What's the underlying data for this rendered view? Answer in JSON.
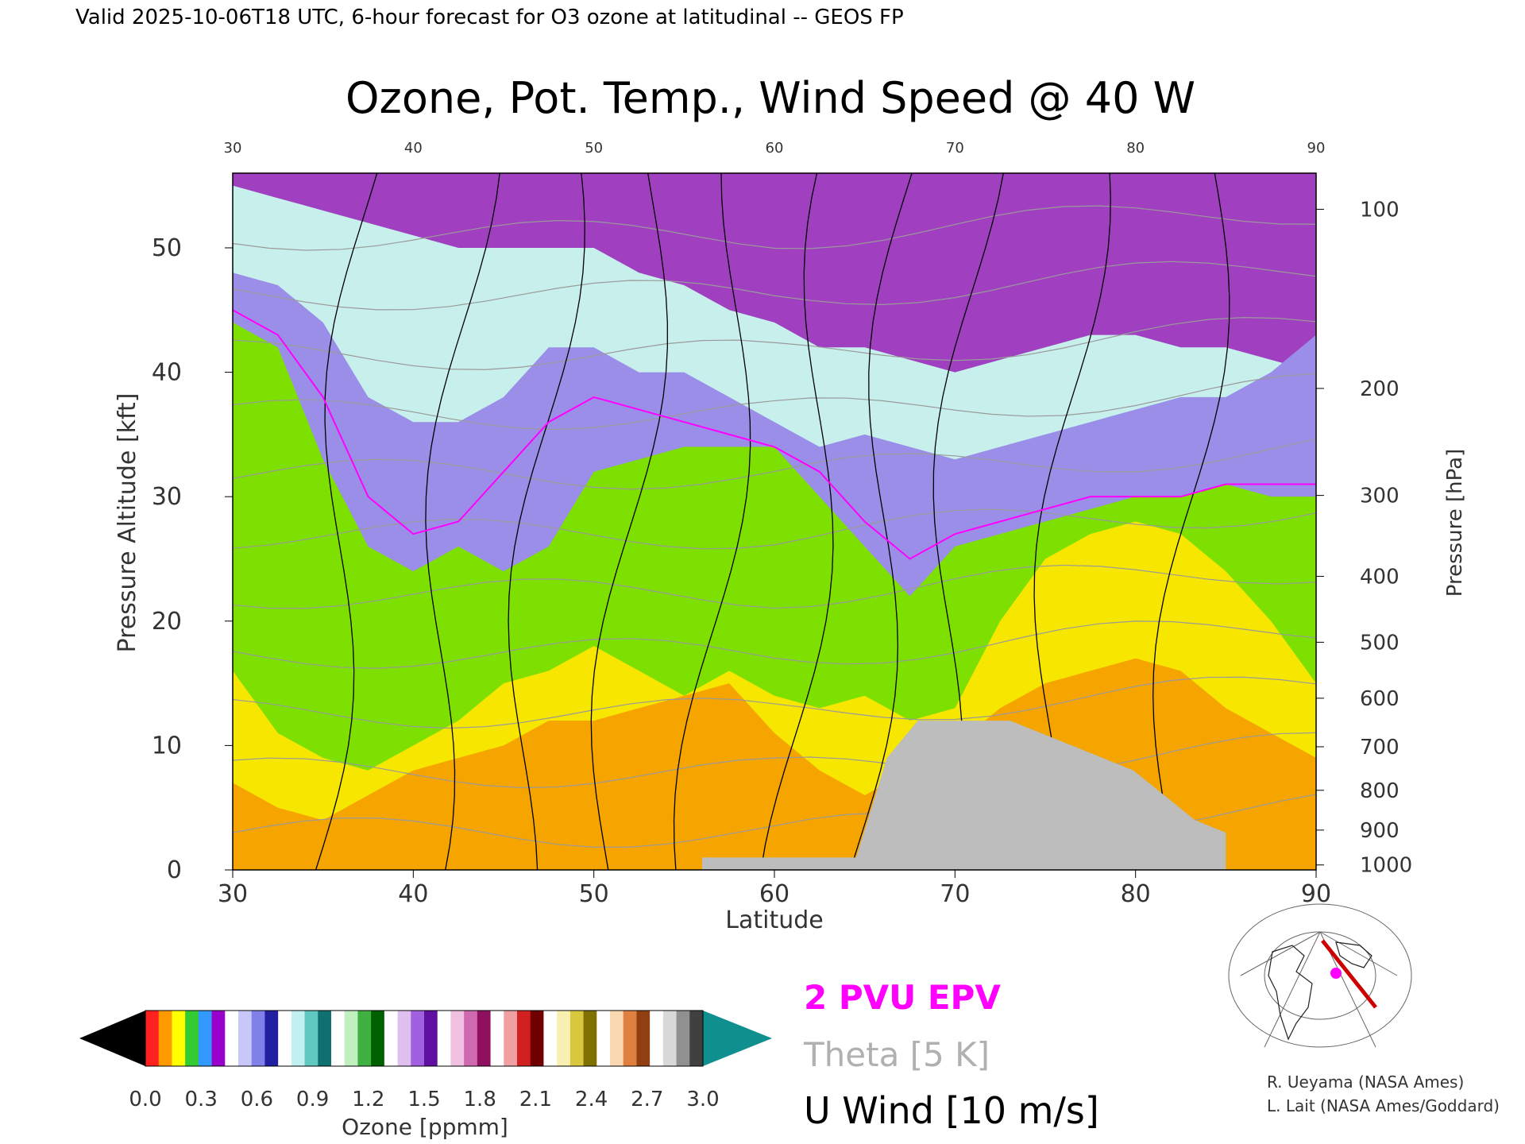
{
  "header": {
    "valid_line": "Valid 2025-10-06T18 UTC, 6-hour forecast for O3 ozone at latitudinal -- GEOS FP"
  },
  "chart_data": {
    "type": "heatmap",
    "title": "Ozone, Pot. Temp., Wind Speed @ 40 W",
    "xlabel": "Latitude",
    "ylabel": "Pressure Altitude [kft]",
    "ylabel_right": "Pressure [hPa]",
    "xlim": [
      30,
      90
    ],
    "ylim": [
      0,
      56
    ],
    "x_ticks": [
      "30",
      "40",
      "50",
      "60",
      "70",
      "80",
      "90"
    ],
    "y_ticks": [
      "0",
      "10",
      "20",
      "30",
      "40",
      "50"
    ],
    "pressure_ticks": [
      {
        "label": "100",
        "kft": 53.1
      },
      {
        "label": "200",
        "kft": 38.7
      },
      {
        "label": "300",
        "kft": 30.1
      },
      {
        "label": "400",
        "kft": 23.6
      },
      {
        "label": "500",
        "kft": 18.3
      },
      {
        "label": "600",
        "kft": 13.8
      },
      {
        "label": "700",
        "kft": 9.9
      },
      {
        "label": "800",
        "kft": 6.4
      },
      {
        "label": "900",
        "kft": 3.2
      },
      {
        "label": "1000",
        "kft": 0.4
      }
    ],
    "ozone_layers": [
      {
        "range_ppmm": "0.0-0.2",
        "color": "#f5a400",
        "top_kft": [
          7,
          5,
          4,
          6,
          8,
          9,
          10,
          12,
          12,
          13,
          14,
          15,
          11,
          8,
          6,
          8,
          10,
          13,
          15,
          16,
          17,
          16,
          13,
          11,
          9
        ]
      },
      {
        "range_ppmm": "0.2-0.3",
        "color": "#f7e600",
        "top_kft": [
          16,
          11,
          9,
          8,
          10,
          12,
          15,
          16,
          18,
          16,
          14,
          16,
          14,
          13,
          14,
          12,
          13,
          20,
          25,
          27,
          28,
          27,
          24,
          20,
          15
        ]
      },
      {
        "range_ppmm": "0.3-0.35",
        "color": "#7de000",
        "top_kft": [
          44,
          42,
          33,
          26,
          24,
          26,
          24,
          26,
          32,
          33,
          34,
          34,
          34,
          30,
          26,
          22,
          26,
          27,
          28,
          29,
          30,
          30,
          31,
          30,
          30
        ]
      },
      {
        "range_ppmm": "0.35-0.5",
        "color": "#9a8ee8",
        "top_kft": [
          48,
          47,
          44,
          38,
          36,
          36,
          38,
          42,
          42,
          40,
          40,
          38,
          36,
          34,
          35,
          34,
          33,
          34,
          35,
          36,
          37,
          38,
          38,
          40,
          43
        ]
      },
      {
        "range_ppmm": "0.5-0.6",
        "color": "#c7f0ec",
        "top_kft": [
          55,
          54,
          53,
          52,
          51,
          50,
          50,
          50,
          50,
          48,
          47,
          45,
          44,
          42,
          42,
          41,
          40,
          41,
          42,
          43,
          43,
          42,
          42,
          41,
          40
        ]
      },
      {
        "range_ppmm": ">0.6",
        "color": "#a040c0",
        "top_kft": [
          56,
          56,
          56,
          56,
          56,
          56,
          56,
          56,
          56,
          56,
          56,
          56,
          56,
          56,
          56,
          56,
          56,
          56,
          56,
          56,
          56,
          56,
          56,
          56,
          56
        ]
      }
    ],
    "epv_2pvu_kft": [
      45,
      43,
      38,
      30,
      27,
      28,
      32,
      36,
      38,
      37,
      36,
      35,
      34,
      32,
      28,
      25,
      27,
      28,
      29,
      30,
      30,
      30,
      31,
      31,
      31
    ],
    "terrain_mask": [
      {
        "lat_from": 56,
        "lat_to": 85,
        "top_kft": [
          1,
          1,
          1,
          1,
          1,
          1,
          9,
          12,
          12,
          12,
          12,
          11,
          10,
          9,
          8,
          6,
          4,
          3
        ]
      }
    ],
    "theta_contours_K": [
      "280",
      "290",
      "300",
      "310",
      "320",
      "330",
      "340",
      "350",
      "360",
      "370",
      "380"
    ],
    "u_wind_contours_ms": [
      "0",
      "10",
      "20",
      "30"
    ],
    "colorbar": {
      "label": "Ozone [ppmm]",
      "ticks": [
        "0.0",
        "0.3",
        "0.6",
        "0.9",
        "1.2",
        "1.5",
        "1.8",
        "2.1",
        "2.4",
        "2.7",
        "3.0"
      ],
      "colors": [
        "#ff2020",
        "#ff9900",
        "#ffff00",
        "#33cc33",
        "#3399ff",
        "#9900cc",
        "#ffffff",
        "#c8c8f8",
        "#8080e8",
        "#2020a0",
        "#ffffff",
        "#c0f0f0",
        "#60c8c0",
        "#107070",
        "#ffffff",
        "#c0f0c0",
        "#40b040",
        "#006000",
        "#ffffff",
        "#e0c0f0",
        "#a060e0",
        "#6010a0",
        "#ffffff",
        "#f0c0e0",
        "#d06ab0",
        "#901060",
        "#ffffff",
        "#f0a0a0",
        "#d02020",
        "#700000",
        "#ffffff",
        "#f8f0b0",
        "#d8c840",
        "#807000",
        "#ffffff",
        "#f8d8b0",
        "#e08040",
        "#904010",
        "#ffffff",
        "#d8d8d8",
        "#909090",
        "#404040"
      ]
    },
    "legend": [
      {
        "label": "2 PVU EPV",
        "color": "#ff00ff"
      },
      {
        "label": "Theta [5 K]",
        "color": "#b0b0b0"
      },
      {
        "label": "U Wind [10 m/s]",
        "color": "#000000"
      }
    ]
  },
  "credits": [
    "R. Ueyama (NASA Ames)",
    "L. Lait (NASA Ames/Goddard)"
  ]
}
